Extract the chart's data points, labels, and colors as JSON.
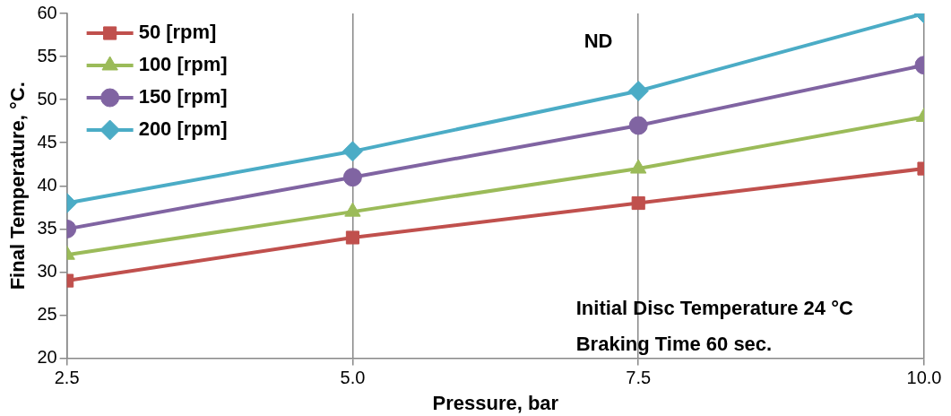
{
  "chart_data": {
    "type": "line",
    "xlabel": "Pressure, bar",
    "ylabel": "Final Temperature, °C.",
    "x": [
      2.5,
      5,
      7.5,
      10
    ],
    "xlim": [
      2.5,
      10
    ],
    "xticks": [
      {
        "value": 2.5,
        "label": "2.5"
      },
      {
        "value": 5,
        "label": "5.0"
      },
      {
        "value": 7.5,
        "label": "7.5"
      },
      {
        "value": 10,
        "label": "10.0"
      }
    ],
    "ylim": [
      20,
      60
    ],
    "yticks": [
      20,
      25,
      30,
      35,
      40,
      45,
      50,
      55,
      60
    ],
    "grid": "x",
    "legend": "top left",
    "series": [
      {
        "name": "50 [rpm]",
        "color": "#c0504d",
        "marker": "square",
        "values": [
          29,
          34,
          38,
          42
        ]
      },
      {
        "name": "100 [rpm]",
        "color": "#9bbb59",
        "marker": "triangle",
        "values": [
          32,
          37,
          42,
          48
        ]
      },
      {
        "name": "150 [rpm]",
        "color": "#8064a2",
        "marker": "circle",
        "values": [
          35,
          41,
          47,
          54
        ]
      },
      {
        "name": "200 [rpm]",
        "color": "#4bacc6",
        "marker": "diamond",
        "values": [
          38,
          44,
          51,
          60
        ]
      }
    ],
    "annotations": [
      "ND",
      "Initial Disc Temperature 24 °C",
      "Braking Time 60 sec."
    ]
  }
}
